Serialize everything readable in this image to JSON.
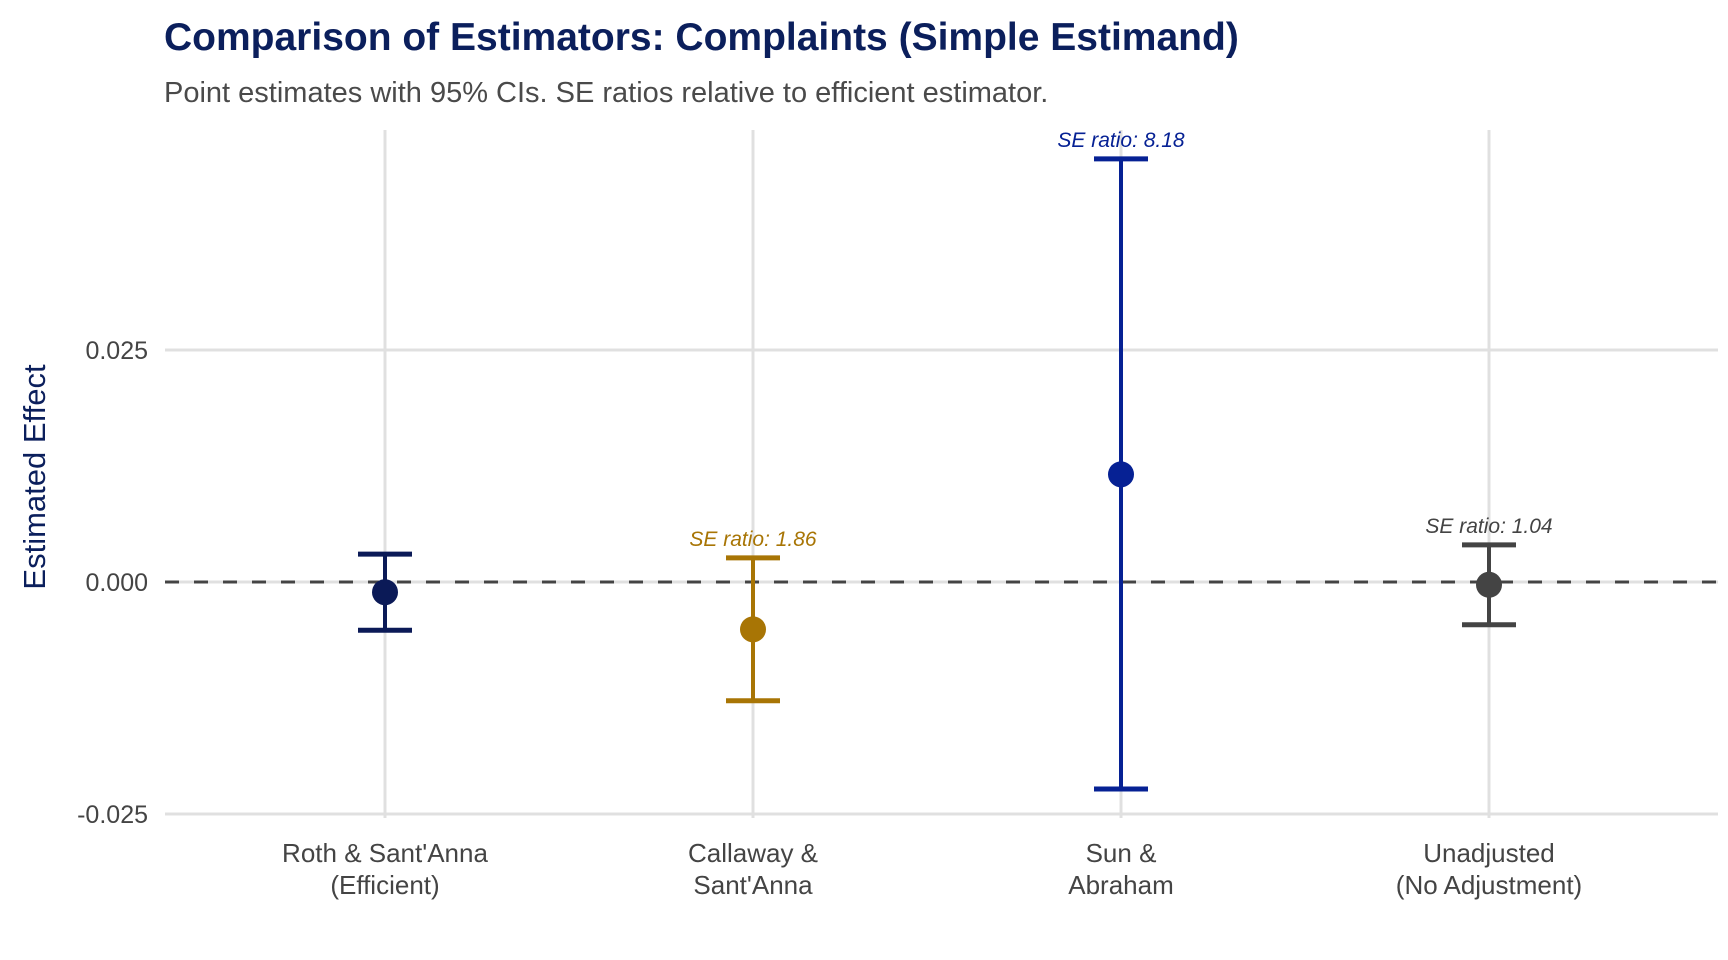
{
  "chart_data": {
    "type": "errorbar",
    "title": "Comparison of Estimators: Complaints (Simple Estimand)",
    "subtitle": "Point estimates with 95% CIs. SE ratios relative to efficient estimator.",
    "xlabel": "",
    "ylabel": "Estimated Effect",
    "ylim": [
      -0.026,
      0.049
    ],
    "yticks": [
      -0.025,
      0.0,
      0.025
    ],
    "ytick_labels": [
      "-0.025",
      "0.000",
      "0.025"
    ],
    "grid": true,
    "reference_line": {
      "y": 0.0,
      "style": "dashed",
      "color": "#444444"
    },
    "categories": [
      [
        "Roth & Sant'Anna",
        "(Efficient)"
      ],
      [
        "Callaway &",
        "Sant'Anna"
      ],
      [
        "Sun &",
        "Abraham"
      ],
      [
        "Unadjusted",
        "(No Adjustment)"
      ]
    ],
    "series": [
      {
        "name": "Roth & Sant'Anna (Efficient)",
        "estimate": -0.0011,
        "ci_low": -0.0052,
        "ci_high": 0.003,
        "color": "#0b1a57",
        "annotation": ""
      },
      {
        "name": "Callaway & Sant'Anna",
        "estimate": -0.0051,
        "ci_low": -0.0128,
        "ci_high": 0.0026,
        "color": "#a87505",
        "annotation": "SE ratio: 1.86"
      },
      {
        "name": "Sun & Abraham",
        "estimate": 0.0116,
        "ci_low": -0.0223,
        "ci_high": 0.0456,
        "color": "#062194",
        "annotation": "SE ratio: 8.18"
      },
      {
        "name": "Unadjusted (No Adjustment)",
        "estimate": -0.0003,
        "ci_low": -0.0046,
        "ci_high": 0.004,
        "color": "#444444",
        "annotation": "SE ratio: 1.04"
      }
    ],
    "legend": "none"
  }
}
